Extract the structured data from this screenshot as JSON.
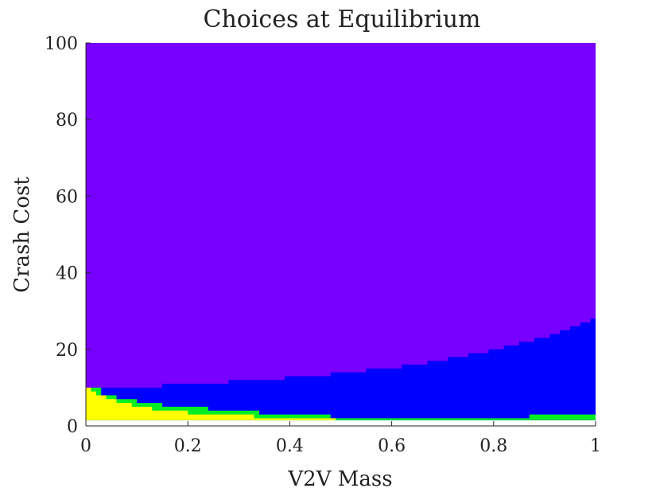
{
  "chart_data": {
    "type": "heatmap",
    "title": "Choices at Equilibrium",
    "xlabel": "V2V Mass",
    "ylabel": "Crash Cost",
    "xlim": [
      0,
      1
    ],
    "ylim": [
      0,
      100
    ],
    "x_ticks": [
      "0",
      "0.2",
      "0.4",
      "0.6",
      "0.8",
      "1"
    ],
    "y_ticks": [
      "0",
      "20",
      "40",
      "60",
      "80",
      "100"
    ],
    "colors": {
      "purple": "#7700ff",
      "blue": "#0000ff",
      "green": "#00ee22",
      "yellow": "#ffff00"
    },
    "regions": {
      "blue_upper_boundary": [
        [
          0.0,
          10
        ],
        [
          0.15,
          10
        ],
        [
          0.15,
          11
        ],
        [
          0.28,
          11
        ],
        [
          0.28,
          12
        ],
        [
          0.39,
          12
        ],
        [
          0.39,
          13
        ],
        [
          0.48,
          13
        ],
        [
          0.48,
          14
        ],
        [
          0.55,
          14
        ],
        [
          0.55,
          15
        ],
        [
          0.62,
          15
        ],
        [
          0.62,
          16
        ],
        [
          0.67,
          16
        ],
        [
          0.67,
          17
        ],
        [
          0.71,
          17
        ],
        [
          0.71,
          18
        ],
        [
          0.75,
          18
        ],
        [
          0.75,
          19
        ],
        [
          0.79,
          19
        ],
        [
          0.79,
          20
        ],
        [
          0.82,
          20
        ],
        [
          0.82,
          21
        ],
        [
          0.85,
          21
        ],
        [
          0.85,
          22
        ],
        [
          0.88,
          22
        ],
        [
          0.88,
          23
        ],
        [
          0.91,
          23
        ],
        [
          0.91,
          24
        ],
        [
          0.93,
          24
        ],
        [
          0.93,
          25
        ],
        [
          0.95,
          25
        ],
        [
          0.95,
          26
        ],
        [
          0.97,
          26
        ],
        [
          0.97,
          27
        ],
        [
          0.99,
          27
        ],
        [
          0.99,
          28
        ],
        [
          1.0,
          28
        ]
      ],
      "yellow_upper_boundary": [
        [
          0.0,
          10
        ],
        [
          0.01,
          10
        ],
        [
          0.01,
          9
        ],
        [
          0.02,
          9
        ],
        [
          0.02,
          8
        ],
        [
          0.04,
          8
        ],
        [
          0.04,
          7
        ],
        [
          0.06,
          7
        ],
        [
          0.06,
          6
        ],
        [
          0.09,
          6
        ],
        [
          0.09,
          5
        ],
        [
          0.13,
          5
        ],
        [
          0.13,
          4
        ],
        [
          0.2,
          4
        ],
        [
          0.2,
          3
        ],
        [
          0.33,
          3
        ],
        [
          0.33,
          2
        ],
        [
          0.49,
          2
        ],
        [
          0.49,
          1.5
        ],
        [
          0.69,
          1.5
        ],
        [
          0.69,
          1.5
        ],
        [
          1.0,
          1.5
        ]
      ],
      "green_upper_boundary": [
        [
          0.0,
          10
        ],
        [
          0.03,
          10
        ],
        [
          0.03,
          8
        ],
        [
          0.06,
          8
        ],
        [
          0.06,
          7
        ],
        [
          0.1,
          7
        ],
        [
          0.1,
          6
        ],
        [
          0.15,
          6
        ],
        [
          0.15,
          5
        ],
        [
          0.24,
          5
        ],
        [
          0.24,
          4
        ],
        [
          0.34,
          4
        ],
        [
          0.34,
          3
        ],
        [
          0.48,
          3
        ],
        [
          0.48,
          2
        ],
        [
          0.69,
          2
        ],
        [
          0.69,
          2
        ],
        [
          0.87,
          2
        ],
        [
          0.87,
          3
        ],
        [
          1.0,
          3
        ]
      ],
      "bottom_value": 1.5
    }
  }
}
